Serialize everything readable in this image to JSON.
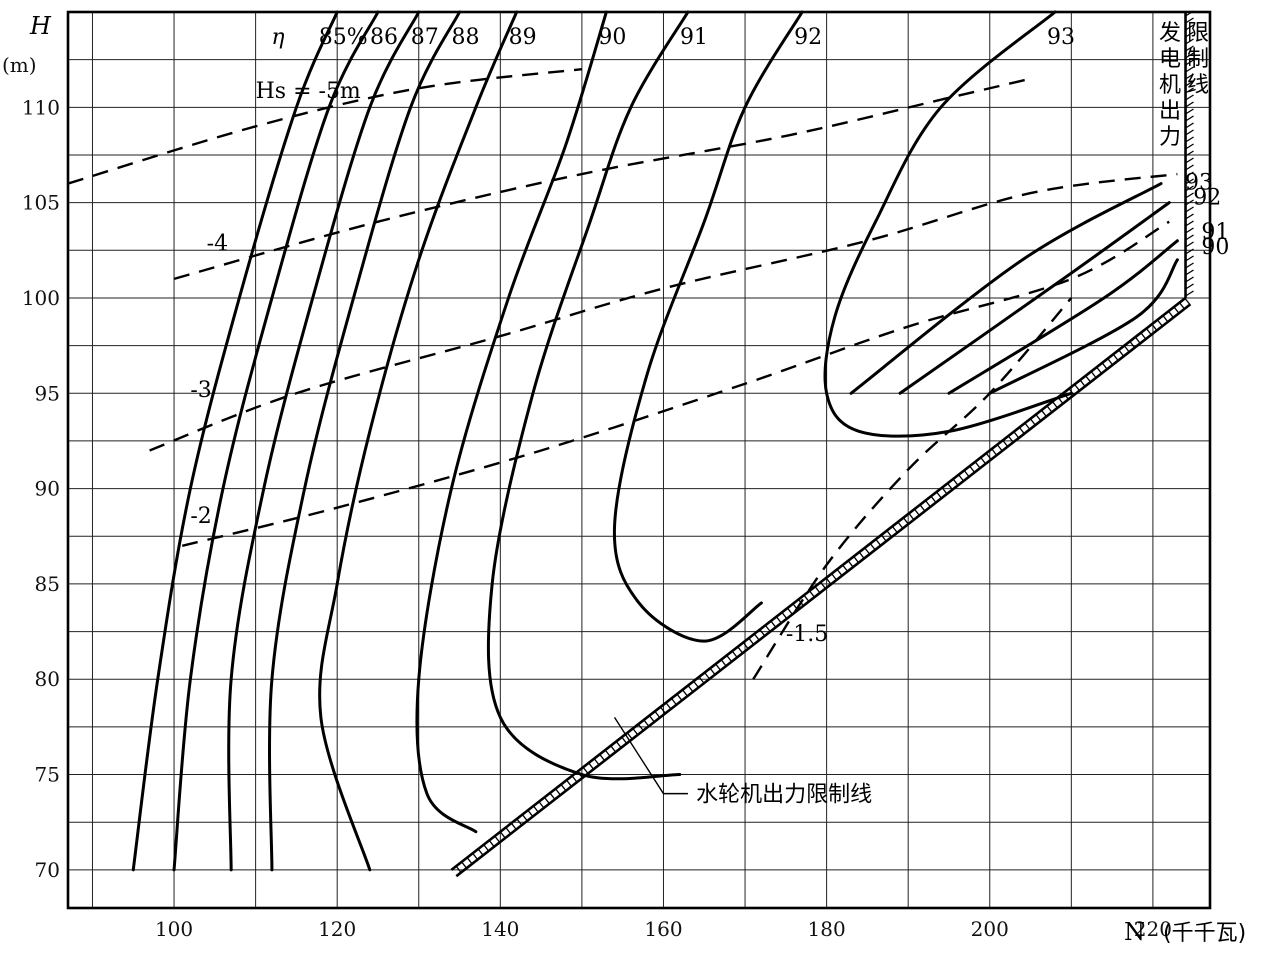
{
  "chart_data": {
    "type": "line",
    "title": "",
    "xlabel": "N",
    "xlabel_unit": "(千千瓦)",
    "ylabel": "H",
    "ylabel_unit": "(m)",
    "xlim": [
      87,
      227
    ],
    "ylim": [
      68,
      115
    ],
    "x_ticks": [
      "100",
      "120",
      "140",
      "160",
      "180",
      "200",
      "220"
    ],
    "y_ticks": [
      "70",
      "75",
      "80",
      "85",
      "90",
      "95",
      "100",
      "105",
      "110"
    ],
    "grid": true,
    "efficiency_symbol": "η",
    "efficiency_contours": [
      {
        "label": "85%",
        "points": [
          [
            95,
            70
          ],
          [
            98,
            80
          ],
          [
            102,
            90
          ],
          [
            108,
            100
          ],
          [
            115,
            110
          ],
          [
            120,
            115
          ]
        ]
      },
      {
        "label": "86",
        "points": [
          [
            100,
            70
          ],
          [
            102,
            80
          ],
          [
            106,
            90
          ],
          [
            112,
            100
          ],
          [
            119,
            110
          ],
          [
            125,
            115
          ]
        ]
      },
      {
        "label": "87",
        "points": [
          [
            107,
            70
          ],
          [
            107,
            80
          ],
          [
            111,
            90
          ],
          [
            117,
            100
          ],
          [
            124,
            110
          ],
          [
            130,
            115
          ]
        ]
      },
      {
        "label": "88",
        "points": [
          [
            112,
            70
          ],
          [
            112,
            80
          ],
          [
            116,
            90
          ],
          [
            122,
            100
          ],
          [
            129,
            110
          ],
          [
            135,
            115
          ]
        ]
      },
      {
        "label": "89",
        "points": [
          [
            124,
            70
          ],
          [
            118,
            78
          ],
          [
            120,
            85
          ],
          [
            124,
            93
          ],
          [
            130,
            102
          ],
          [
            137,
            110
          ],
          [
            142,
            115
          ]
        ]
      },
      {
        "label": "90",
        "points": [
          [
            137,
            72
          ],
          [
            131,
            74
          ],
          [
            130,
            80
          ],
          [
            134,
            90
          ],
          [
            141,
            100
          ],
          [
            148,
            108
          ],
          [
            153,
            115
          ]
        ]
      },
      {
        "label": "91",
        "points": [
          [
            162,
            75
          ],
          [
            150,
            75
          ],
          [
            140,
            78
          ],
          [
            139,
            85
          ],
          [
            144,
            95
          ],
          [
            151,
            104
          ],
          [
            156,
            110
          ],
          [
            163,
            115
          ]
        ]
      },
      {
        "label": "92",
        "points": [
          [
            172,
            84
          ],
          [
            165,
            82
          ],
          [
            157,
            84
          ],
          [
            154,
            88
          ],
          [
            158,
            96
          ],
          [
            165,
            104
          ],
          [
            170,
            110
          ],
          [
            177,
            115
          ]
        ]
      },
      {
        "label": "93",
        "points": [
          [
            210,
            95
          ],
          [
            195,
            93
          ],
          [
            184,
            93
          ],
          [
            180,
            95
          ],
          [
            181,
            99
          ],
          [
            186,
            104
          ],
          [
            194,
            110
          ],
          [
            208,
            115
          ]
        ]
      }
    ],
    "efficiency_contours_right": [
      {
        "label": "93",
        "points": [
          [
            183,
            95
          ],
          [
            204,
            102
          ],
          [
            221,
            106
          ]
        ]
      },
      {
        "label": "92",
        "points": [
          [
            189,
            95
          ],
          [
            209,
            101
          ],
          [
            222,
            105
          ]
        ]
      },
      {
        "label": "91",
        "points": [
          [
            195,
            95
          ],
          [
            214,
            100
          ],
          [
            223,
            103
          ]
        ]
      },
      {
        "label": "90",
        "points": [
          [
            200,
            95
          ],
          [
            218,
            99
          ],
          [
            223,
            102
          ]
        ]
      }
    ],
    "suction_height_lines": [
      {
        "label": "Hs = -5m",
        "points": [
          [
            87,
            106
          ],
          [
            110,
            109
          ],
          [
            130,
            111
          ],
          [
            150,
            112
          ]
        ]
      },
      {
        "label": "-4",
        "points": [
          [
            100,
            101
          ],
          [
            125,
            104
          ],
          [
            150,
            106.5
          ],
          [
            175,
            108.5
          ],
          [
            195,
            110.5
          ],
          [
            205,
            111.5
          ]
        ]
      },
      {
        "label": "-3",
        "points": [
          [
            97,
            92
          ],
          [
            115,
            95
          ],
          [
            140,
            98
          ],
          [
            160,
            100.5
          ],
          [
            185,
            103
          ],
          [
            205,
            105.5
          ],
          [
            223,
            106.5
          ]
        ]
      },
      {
        "label": "-2",
        "points": [
          [
            101,
            87
          ],
          [
            120,
            89
          ],
          [
            145,
            92
          ],
          [
            170,
            95.5
          ],
          [
            190,
            98.5
          ],
          [
            210,
            101
          ],
          [
            222,
            104
          ]
        ]
      },
      {
        "label": "-1.5",
        "points": [
          [
            171,
            80
          ],
          [
            180,
            86
          ],
          [
            190,
            91
          ],
          [
            200,
            95
          ],
          [
            210,
            100
          ]
        ]
      }
    ],
    "turbine_output_limit": {
      "label": "水轮机出力限制线",
      "points": [
        [
          134,
          70
        ],
        [
          224,
          100
        ]
      ]
    },
    "generator_output_limit": {
      "label": "发电机出力限制线",
      "x": 224,
      "y_range": [
        100,
        115
      ]
    }
  }
}
